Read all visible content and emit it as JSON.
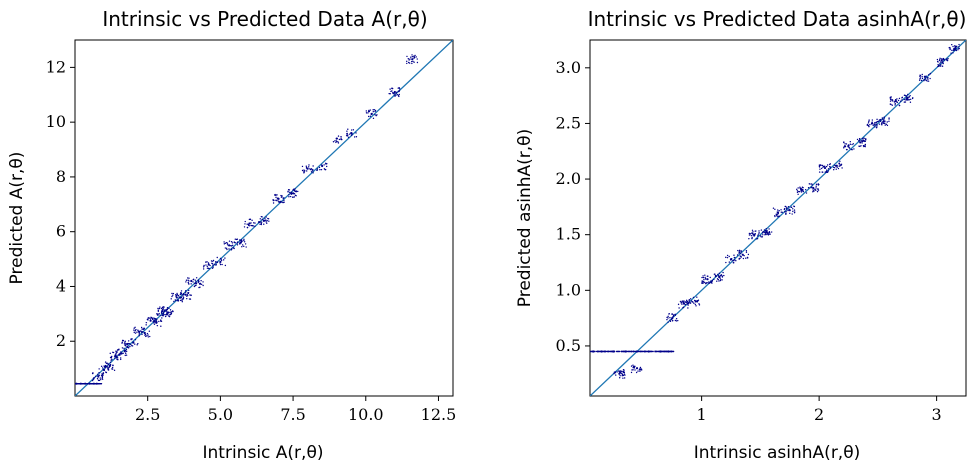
{
  "chart_data": [
    {
      "type": "scatter",
      "title": "Intrinsic vs Predicted Data A(r,θ)",
      "xlabel": "Intrinsic A(r,θ)",
      "ylabel": "Predicted A(r,θ)",
      "xlim": [
        0.0,
        13.0
      ],
      "ylim": [
        0.0,
        13.0
      ],
      "xticks": [
        2.5,
        5.0,
        7.5,
        10.0,
        12.5
      ],
      "xtick_labels": [
        "2.5",
        "5.0",
        "7.5",
        "10.0",
        "12.5"
      ],
      "yticks": [
        2,
        4,
        6,
        8,
        10,
        12
      ],
      "ytick_labels": [
        "2",
        "4",
        "6",
        "8",
        "10",
        "12"
      ],
      "reference_line": "y = x",
      "grid": false,
      "series": [
        {
          "points": [
            [
              0.05,
              0.45
            ],
            [
              0.2,
              0.45
            ],
            [
              0.35,
              0.45
            ],
            [
              0.5,
              0.45
            ],
            [
              0.65,
              0.45
            ],
            [
              0.75,
              0.45
            ],
            [
              0.8,
              0.72
            ],
            [
              1.0,
              0.95
            ],
            [
              1.2,
              1.1
            ],
            [
              1.4,
              1.45
            ],
            [
              1.6,
              1.55
            ],
            [
              1.8,
              1.9
            ],
            [
              2.0,
              1.95
            ],
            [
              2.2,
              2.35
            ],
            [
              2.4,
              2.3
            ],
            [
              2.6,
              2.75
            ],
            [
              2.8,
              2.7
            ],
            [
              3.0,
              3.1
            ],
            [
              3.2,
              3.05
            ],
            [
              3.5,
              3.6
            ],
            [
              3.8,
              3.7
            ],
            [
              4.0,
              4.2
            ],
            [
              4.3,
              4.1
            ],
            [
              4.6,
              4.8
            ],
            [
              5.0,
              4.9
            ],
            [
              5.3,
              5.5
            ],
            [
              5.7,
              5.6
            ],
            [
              6.0,
              6.3
            ],
            [
              6.5,
              6.4
            ],
            [
              7.0,
              7.2
            ],
            [
              7.5,
              7.4
            ],
            [
              8.0,
              8.3
            ],
            [
              8.5,
              8.4
            ],
            [
              9.0,
              9.4
            ],
            [
              9.5,
              9.6
            ],
            [
              10.2,
              10.3
            ],
            [
              11.0,
              11.1
            ],
            [
              11.6,
              12.3
            ]
          ]
        }
      ]
    },
    {
      "type": "scatter",
      "title": "Intrinsic vs Predicted Data asinhA(r,θ)",
      "xlabel": "Intrinsic asinhA(r,θ)",
      "ylabel": "Predicted asinhA(r,θ)",
      "xlim": [
        0.05,
        3.25
      ],
      "ylim": [
        0.05,
        3.25
      ],
      "xticks": [
        1,
        2,
        3
      ],
      "xtick_labels": [
        "1",
        "2",
        "3"
      ],
      "yticks": [
        0.5,
        1.0,
        1.5,
        2.0,
        2.5,
        3.0
      ],
      "ytick_labels": [
        "0.5",
        "1.0",
        "1.5",
        "2.0",
        "2.5",
        "3.0"
      ],
      "reference_line": "y = x",
      "grid": false,
      "series": [
        {
          "points": [
            [
              0.08,
              0.45
            ],
            [
              0.15,
              0.45
            ],
            [
              0.25,
              0.45
            ],
            [
              0.35,
              0.45
            ],
            [
              0.45,
              0.45
            ],
            [
              0.55,
              0.45
            ],
            [
              0.65,
              0.45
            ],
            [
              0.72,
              0.45
            ],
            [
              0.3,
              0.25
            ],
            [
              0.45,
              0.3
            ],
            [
              0.75,
              0.75
            ],
            [
              0.85,
              0.88
            ],
            [
              0.95,
              0.9
            ],
            [
              1.05,
              1.1
            ],
            [
              1.15,
              1.12
            ],
            [
              1.25,
              1.28
            ],
            [
              1.35,
              1.32
            ],
            [
              1.45,
              1.5
            ],
            [
              1.55,
              1.52
            ],
            [
              1.65,
              1.7
            ],
            [
              1.75,
              1.72
            ],
            [
              1.85,
              1.9
            ],
            [
              1.95,
              1.92
            ],
            [
              2.05,
              2.1
            ],
            [
              2.15,
              2.12
            ],
            [
              2.25,
              2.3
            ],
            [
              2.35,
              2.33
            ],
            [
              2.45,
              2.5
            ],
            [
              2.55,
              2.52
            ],
            [
              2.65,
              2.7
            ],
            [
              2.75,
              2.73
            ],
            [
              2.9,
              2.92
            ],
            [
              3.05,
              3.05
            ],
            [
              3.15,
              3.17
            ]
          ]
        }
      ]
    }
  ]
}
